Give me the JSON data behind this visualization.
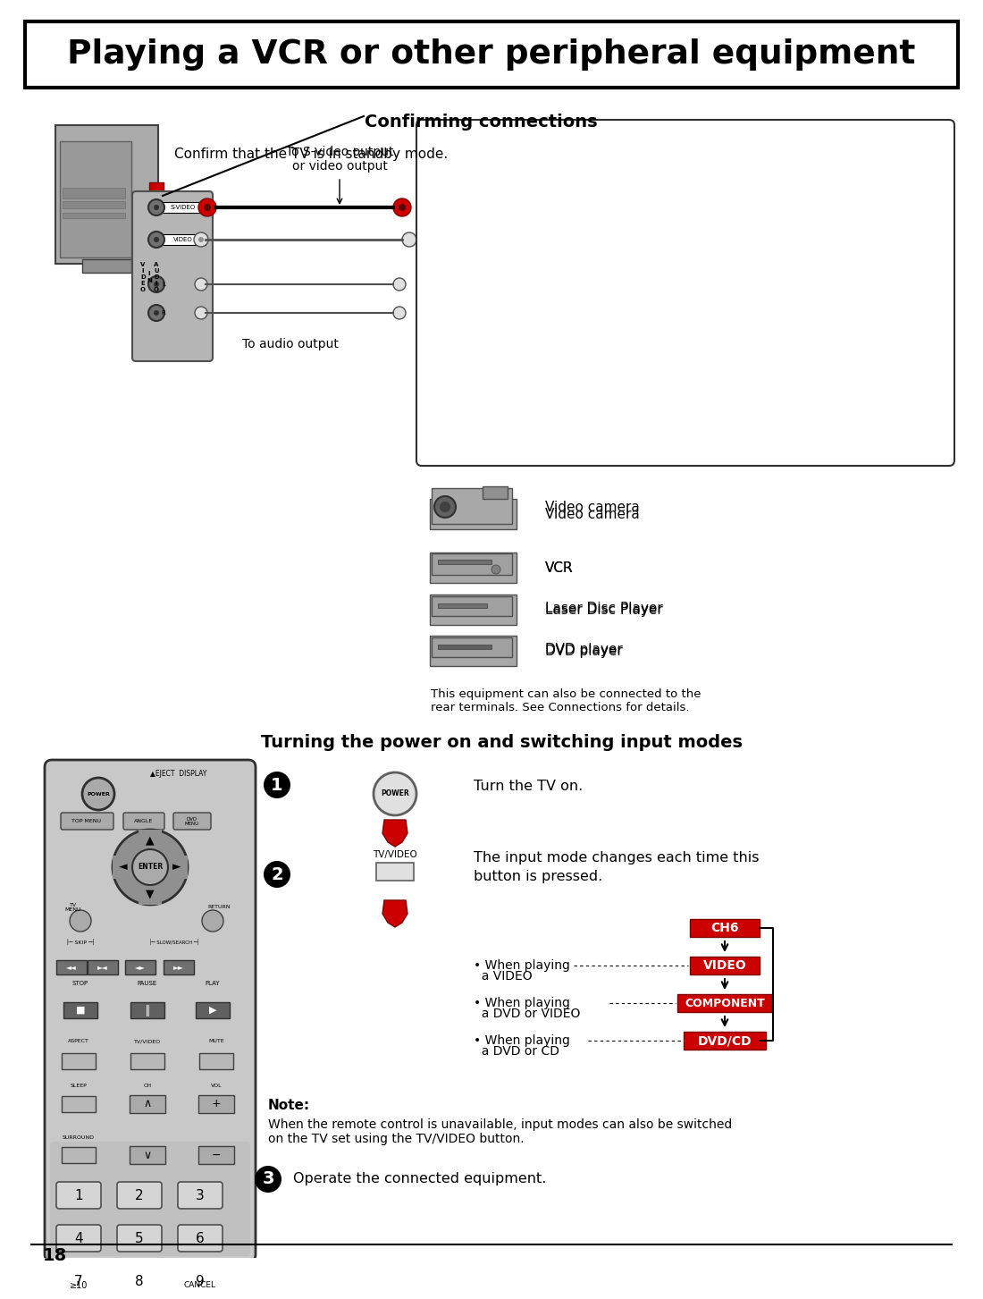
{
  "bg_color": "#ffffff",
  "title_text": "Playing a VCR or other peripheral equipment",
  "section1_title": "Confirming connections",
  "section1_subtitle": "Confirm that the TV is in standby mode.",
  "svideo_label": "To S-video output\nor video output",
  "audio_label": "To audio output",
  "box_note": "This equipment can also be connected to the\nrear terminals. See Connections for details.",
  "section2_title": "Turning the power on and switching input modes",
  "step1_text": "Turn the TV on.",
  "step2_text": "The input mode changes each time this\nbutton is pressed.",
  "tv_video_label": "TV/VIDEO",
  "power_label": "POWER",
  "ch6_label": "CH6",
  "video_label": "VIDEO",
  "component_label": "COMPONENT",
  "dvdcd_label": "DVD/CD",
  "when1_line1": "• When playing",
  "when1_line2": "  a VIDEO",
  "when2_line1": "• When playing",
  "when2_line2": "  a DVD or VIDEO",
  "when3_line1": "• When playing",
  "when3_line2": "  a DVD or CD",
  "note_bold": "Note:",
  "note_text": "When the remote control is unavailable, input modes can also be switched\non the TV set using the TV/VIDEO button.",
  "step3_text": "Operate the connected equipment.",
  "page_number": "18",
  "red_color": "#cc0000",
  "dark_red": "#990000"
}
